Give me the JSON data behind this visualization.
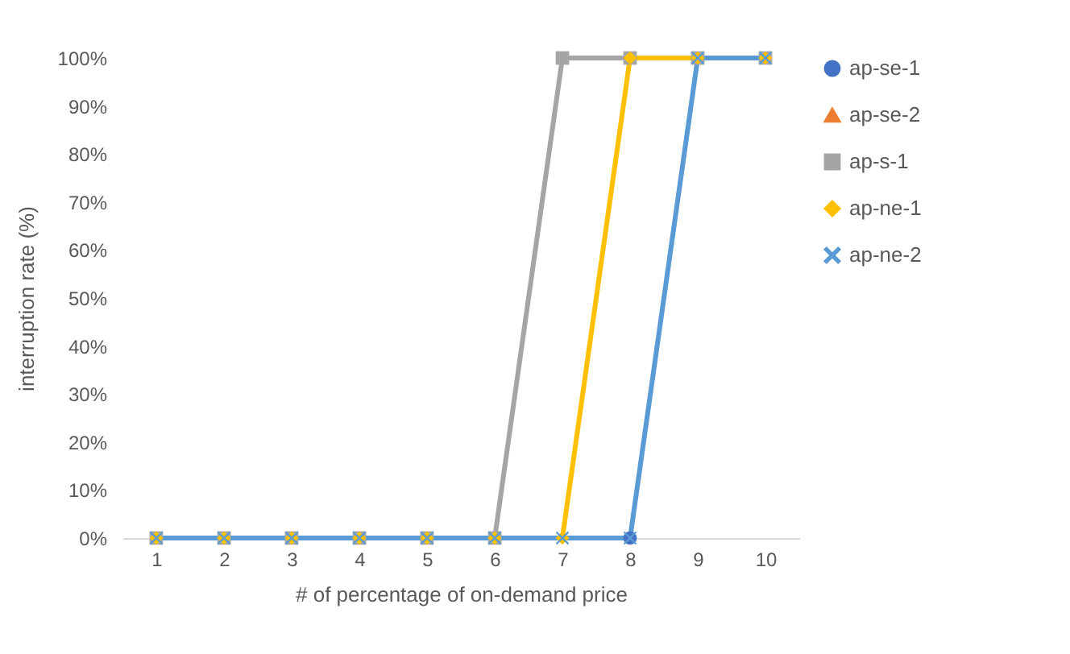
{
  "chart_data": {
    "type": "line",
    "xlabel": "# of percentage of on-demand price",
    "ylabel": "interruption rate (%)",
    "categories": [
      "1",
      "2",
      "3",
      "4",
      "5",
      "6",
      "7",
      "8",
      "9",
      "10"
    ],
    "series": [
      {
        "name": "ap-se-1",
        "color": "#4472c4",
        "marker": "circle",
        "values": [
          null,
          null,
          null,
          null,
          null,
          null,
          null,
          0,
          null,
          null
        ]
      },
      {
        "name": "ap-se-2",
        "color": "#ed7d31",
        "marker": "triangle",
        "values": [
          null,
          null,
          null,
          null,
          null,
          null,
          null,
          null,
          null,
          null
        ]
      },
      {
        "name": "ap-s-1",
        "color": "#a5a5a5",
        "marker": "square",
        "values": [
          0,
          0,
          0,
          0,
          0,
          0,
          100,
          100,
          100,
          100
        ]
      },
      {
        "name": "ap-ne-1",
        "color": "#ffc000",
        "marker": "diamond",
        "values": [
          0,
          0,
          0,
          0,
          0,
          0,
          0,
          100,
          100,
          100
        ]
      },
      {
        "name": "ap-ne-2",
        "color": "#5b9bd5",
        "marker": "cross",
        "values": [
          0,
          0,
          0,
          0,
          0,
          0,
          0,
          0,
          100,
          100
        ]
      }
    ],
    "ylim": [
      0,
      100
    ],
    "yticks": [
      {
        "value": 0,
        "label": "0%"
      },
      {
        "value": 10,
        "label": "10%"
      },
      {
        "value": 20,
        "label": "20%"
      },
      {
        "value": 30,
        "label": "30%"
      },
      {
        "value": 40,
        "label": "40%"
      },
      {
        "value": 50,
        "label": "50%"
      },
      {
        "value": 60,
        "label": "60%"
      },
      {
        "value": 70,
        "label": "70%"
      },
      {
        "value": 80,
        "label": "80%"
      },
      {
        "value": 90,
        "label": "90%"
      },
      {
        "value": 100,
        "label": "100%"
      }
    ],
    "legend": "right",
    "line_style": "solid"
  }
}
